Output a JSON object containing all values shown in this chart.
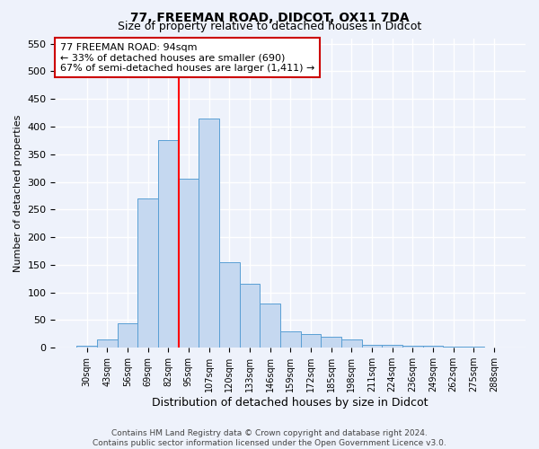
{
  "title": "77, FREEMAN ROAD, DIDCOT, OX11 7DA",
  "subtitle": "Size of property relative to detached houses in Didcot",
  "xlabel": "Distribution of detached houses by size in Didcot",
  "ylabel": "Number of detached properties",
  "categories": [
    "30sqm",
    "43sqm",
    "56sqm",
    "69sqm",
    "82sqm",
    "95sqm",
    "107sqm",
    "120sqm",
    "133sqm",
    "146sqm",
    "159sqm",
    "172sqm",
    "185sqm",
    "198sqm",
    "211sqm",
    "224sqm",
    "236sqm",
    "249sqm",
    "262sqm",
    "275sqm",
    "288sqm"
  ],
  "values": [
    3,
    15,
    45,
    270,
    375,
    305,
    415,
    155,
    115,
    80,
    30,
    25,
    20,
    15,
    5,
    5,
    3,
    3,
    2,
    2,
    1
  ],
  "bar_color": "#c5d8f0",
  "bar_edge_color": "#5a9fd4",
  "background_color": "#eef2fb",
  "grid_color": "#ffffff",
  "annotation_text": "77 FREEMAN ROAD: 94sqm\n← 33% of detached houses are smaller (690)\n67% of semi-detached houses are larger (1,411) →",
  "red_line_index": 4.5,
  "annotation_box_color": "#ffffff",
  "annotation_box_edge": "#cc0000",
  "ylim": [
    0,
    560
  ],
  "yticks": [
    0,
    50,
    100,
    150,
    200,
    250,
    300,
    350,
    400,
    450,
    500,
    550
  ],
  "footer": "Contains HM Land Registry data © Crown copyright and database right 2024.\nContains public sector information licensed under the Open Government Licence v3.0.",
  "title_fontsize": 10,
  "subtitle_fontsize": 9,
  "ylabel_fontsize": 8,
  "xlabel_fontsize": 9
}
